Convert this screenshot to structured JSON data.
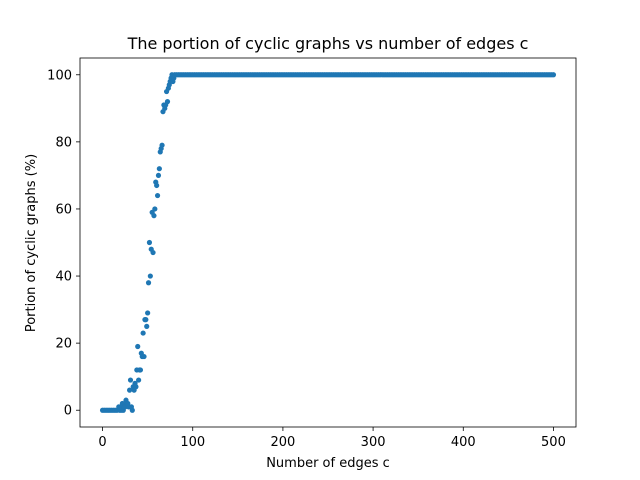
{
  "chart_data": {
    "type": "scatter",
    "title": "The portion of cyclic graphs vs number of edges c",
    "xlabel": "Number of edges c",
    "ylabel": "Portion of cyclic graphs (%)",
    "xlim": [
      -25,
      525
    ],
    "ylim": [
      -5,
      105
    ],
    "xticks": [
      0,
      100,
      200,
      300,
      400,
      500
    ],
    "yticks": [
      0,
      20,
      40,
      60,
      80,
      100
    ],
    "grid": false,
    "legend": "none",
    "marker_color": "#1f77b4",
    "series": [
      {
        "points": [
          [
            0,
            0
          ],
          [
            2,
            0
          ],
          [
            4,
            0
          ],
          [
            6,
            0
          ],
          [
            8,
            0
          ],
          [
            10,
            0
          ],
          [
            12,
            0
          ],
          [
            14,
            0
          ],
          [
            16,
            0
          ],
          [
            18,
            1
          ],
          [
            19,
            0
          ],
          [
            20,
            1
          ],
          [
            21,
            0
          ],
          [
            22,
            2
          ],
          [
            23,
            0
          ],
          [
            24,
            1
          ],
          [
            25,
            1
          ],
          [
            26,
            3
          ],
          [
            27,
            2
          ],
          [
            28,
            2
          ],
          [
            29,
            1
          ],
          [
            30,
            6
          ],
          [
            31,
            9
          ],
          [
            32,
            1
          ],
          [
            33,
            0
          ],
          [
            34,
            7
          ],
          [
            35,
            6
          ],
          [
            36,
            8
          ],
          [
            37,
            7
          ],
          [
            38,
            12
          ],
          [
            39,
            19
          ],
          [
            40,
            9
          ],
          [
            41,
            12
          ],
          [
            42,
            12
          ],
          [
            43,
            17
          ],
          [
            44,
            16
          ],
          [
            45,
            23
          ],
          [
            46,
            16
          ],
          [
            47,
            27
          ],
          [
            48,
            27
          ],
          [
            49,
            25
          ],
          [
            50,
            29
          ],
          [
            51,
            38
          ],
          [
            52,
            50
          ],
          [
            53,
            40
          ],
          [
            54,
            48
          ],
          [
            55,
            59
          ],
          [
            56,
            47
          ],
          [
            57,
            58
          ],
          [
            58,
            60
          ],
          [
            59,
            68
          ],
          [
            60,
            67
          ],
          [
            61,
            64
          ],
          [
            62,
            70
          ],
          [
            63,
            72
          ],
          [
            64,
            77
          ],
          [
            65,
            78
          ],
          [
            66,
            79
          ],
          [
            67,
            89
          ],
          [
            68,
            91
          ],
          [
            69,
            90
          ],
          [
            70,
            91
          ],
          [
            71,
            95
          ],
          [
            72,
            92
          ],
          [
            73,
            96
          ],
          [
            74,
            97
          ],
          [
            75,
            98
          ],
          [
            76,
            99
          ],
          [
            77,
            100
          ],
          [
            78,
            98
          ],
          [
            79,
            99
          ],
          [
            80,
            100
          ],
          [
            82,
            100
          ],
          [
            84,
            100
          ],
          [
            86,
            100
          ],
          [
            88,
            100
          ],
          [
            90,
            100
          ],
          [
            92,
            100
          ],
          [
            94,
            100
          ],
          [
            96,
            100
          ],
          [
            98,
            100
          ],
          [
            100,
            100
          ],
          [
            102,
            100
          ],
          [
            104,
            100
          ],
          [
            106,
            100
          ],
          [
            108,
            100
          ],
          [
            110,
            100
          ],
          [
            112,
            100
          ],
          [
            114,
            100
          ],
          [
            116,
            100
          ],
          [
            118,
            100
          ],
          [
            120,
            100
          ],
          [
            122,
            100
          ],
          [
            124,
            100
          ],
          [
            126,
            100
          ],
          [
            128,
            100
          ],
          [
            130,
            100
          ],
          [
            132,
            100
          ],
          [
            134,
            100
          ],
          [
            136,
            100
          ],
          [
            138,
            100
          ],
          [
            140,
            100
          ],
          [
            142,
            100
          ],
          [
            144,
            100
          ],
          [
            146,
            100
          ],
          [
            148,
            100
          ],
          [
            150,
            100
          ],
          [
            152,
            100
          ],
          [
            154,
            100
          ],
          [
            156,
            100
          ],
          [
            158,
            100
          ],
          [
            160,
            100
          ],
          [
            162,
            100
          ],
          [
            164,
            100
          ],
          [
            166,
            100
          ],
          [
            168,
            100
          ],
          [
            170,
            100
          ],
          [
            172,
            100
          ],
          [
            174,
            100
          ],
          [
            176,
            100
          ],
          [
            178,
            100
          ],
          [
            180,
            100
          ],
          [
            182,
            100
          ],
          [
            184,
            100
          ],
          [
            186,
            100
          ],
          [
            188,
            100
          ],
          [
            190,
            100
          ],
          [
            192,
            100
          ],
          [
            194,
            100
          ],
          [
            196,
            100
          ],
          [
            198,
            100
          ],
          [
            200,
            100
          ],
          [
            202,
            100
          ],
          [
            204,
            100
          ],
          [
            206,
            100
          ],
          [
            208,
            100
          ],
          [
            210,
            100
          ],
          [
            212,
            100
          ],
          [
            214,
            100
          ],
          [
            216,
            100
          ],
          [
            218,
            100
          ],
          [
            220,
            100
          ],
          [
            222,
            100
          ],
          [
            224,
            100
          ],
          [
            226,
            100
          ],
          [
            228,
            100
          ],
          [
            230,
            100
          ],
          [
            232,
            100
          ],
          [
            234,
            100
          ],
          [
            236,
            100
          ],
          [
            238,
            100
          ],
          [
            240,
            100
          ],
          [
            242,
            100
          ],
          [
            244,
            100
          ],
          [
            246,
            100
          ],
          [
            248,
            100
          ],
          [
            250,
            100
          ],
          [
            252,
            100
          ],
          [
            254,
            100
          ],
          [
            256,
            100
          ],
          [
            258,
            100
          ],
          [
            260,
            100
          ],
          [
            262,
            100
          ],
          [
            264,
            100
          ],
          [
            266,
            100
          ],
          [
            268,
            100
          ],
          [
            270,
            100
          ],
          [
            272,
            100
          ],
          [
            274,
            100
          ],
          [
            276,
            100
          ],
          [
            278,
            100
          ],
          [
            280,
            100
          ],
          [
            282,
            100
          ],
          [
            284,
            100
          ],
          [
            286,
            100
          ],
          [
            288,
            100
          ],
          [
            290,
            100
          ],
          [
            292,
            100
          ],
          [
            294,
            100
          ],
          [
            296,
            100
          ],
          [
            298,
            100
          ],
          [
            300,
            100
          ],
          [
            302,
            100
          ],
          [
            304,
            100
          ],
          [
            306,
            100
          ],
          [
            308,
            100
          ],
          [
            310,
            100
          ],
          [
            312,
            100
          ],
          [
            314,
            100
          ],
          [
            316,
            100
          ],
          [
            318,
            100
          ],
          [
            320,
            100
          ],
          [
            322,
            100
          ],
          [
            324,
            100
          ],
          [
            326,
            100
          ],
          [
            328,
            100
          ],
          [
            330,
            100
          ],
          [
            332,
            100
          ],
          [
            334,
            100
          ],
          [
            336,
            100
          ],
          [
            338,
            100
          ],
          [
            340,
            100
          ],
          [
            342,
            100
          ],
          [
            344,
            100
          ],
          [
            346,
            100
          ],
          [
            348,
            100
          ],
          [
            350,
            100
          ],
          [
            352,
            100
          ],
          [
            354,
            100
          ],
          [
            356,
            100
          ],
          [
            358,
            100
          ],
          [
            360,
            100
          ],
          [
            362,
            100
          ],
          [
            364,
            100
          ],
          [
            366,
            100
          ],
          [
            368,
            100
          ],
          [
            370,
            100
          ],
          [
            372,
            100
          ],
          [
            374,
            100
          ],
          [
            376,
            100
          ],
          [
            378,
            100
          ],
          [
            380,
            100
          ],
          [
            382,
            100
          ],
          [
            384,
            100
          ],
          [
            386,
            100
          ],
          [
            388,
            100
          ],
          [
            390,
            100
          ],
          [
            392,
            100
          ],
          [
            394,
            100
          ],
          [
            396,
            100
          ],
          [
            398,
            100
          ],
          [
            400,
            100
          ],
          [
            402,
            100
          ],
          [
            404,
            100
          ],
          [
            406,
            100
          ],
          [
            408,
            100
          ],
          [
            410,
            100
          ],
          [
            412,
            100
          ],
          [
            414,
            100
          ],
          [
            416,
            100
          ],
          [
            418,
            100
          ],
          [
            420,
            100
          ],
          [
            422,
            100
          ],
          [
            424,
            100
          ],
          [
            426,
            100
          ],
          [
            428,
            100
          ],
          [
            430,
            100
          ],
          [
            432,
            100
          ],
          [
            434,
            100
          ],
          [
            436,
            100
          ],
          [
            438,
            100
          ],
          [
            440,
            100
          ],
          [
            442,
            100
          ],
          [
            444,
            100
          ],
          [
            446,
            100
          ],
          [
            448,
            100
          ],
          [
            450,
            100
          ],
          [
            452,
            100
          ],
          [
            454,
            100
          ],
          [
            456,
            100
          ],
          [
            458,
            100
          ],
          [
            460,
            100
          ],
          [
            462,
            100
          ],
          [
            464,
            100
          ],
          [
            466,
            100
          ],
          [
            468,
            100
          ],
          [
            470,
            100
          ],
          [
            472,
            100
          ],
          [
            474,
            100
          ],
          [
            476,
            100
          ],
          [
            478,
            100
          ],
          [
            480,
            100
          ],
          [
            482,
            100
          ],
          [
            484,
            100
          ],
          [
            486,
            100
          ],
          [
            488,
            100
          ],
          [
            490,
            100
          ],
          [
            492,
            100
          ],
          [
            494,
            100
          ],
          [
            496,
            100
          ],
          [
            498,
            100
          ],
          [
            500,
            100
          ]
        ]
      }
    ]
  }
}
